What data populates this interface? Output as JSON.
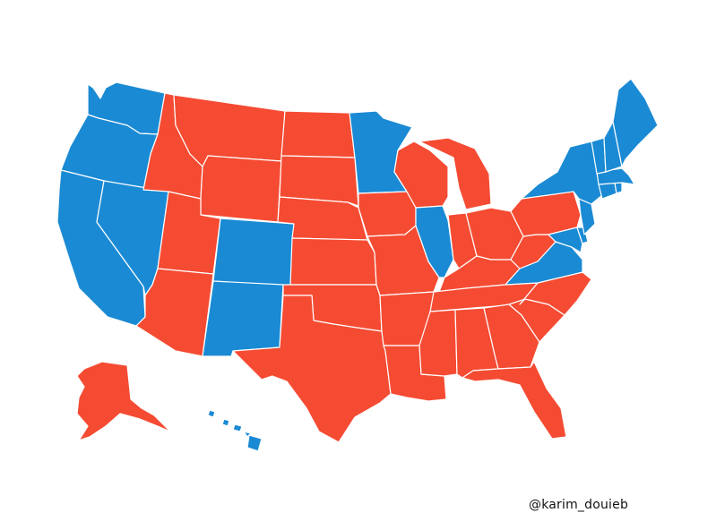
{
  "credit": "@karim_douieb",
  "colors": {
    "dem": "#1a8ad4",
    "rep": "#f54b33",
    "border": "#ffffff",
    "background": "#ffffff"
  },
  "states": {
    "WA": "dem",
    "OR": "dem",
    "CA": "dem",
    "NV": "dem",
    "ID": "rep",
    "MT": "rep",
    "WY": "rep",
    "UT": "rep",
    "AZ": "rep",
    "CO": "dem",
    "NM": "dem",
    "ND": "rep",
    "SD": "rep",
    "NE": "rep",
    "KS": "rep",
    "OK": "rep",
    "TX": "rep",
    "MN": "dem",
    "IA": "rep",
    "MO": "rep",
    "AR": "rep",
    "LA": "rep",
    "WI": "rep",
    "IL": "dem",
    "MI": "rep",
    "IN": "rep",
    "OH": "rep",
    "KY": "rep",
    "TN": "rep",
    "MS": "rep",
    "AL": "rep",
    "GA": "rep",
    "FL": "rep",
    "SC": "rep",
    "NC": "rep",
    "VA": "dem",
    "WV": "rep",
    "MD": "dem",
    "DE": "dem",
    "NJ": "dem",
    "PA": "rep",
    "NY": "dem",
    "CT": "dem",
    "RI": "dem",
    "MA": "dem",
    "VT": "dem",
    "NH": "dem",
    "ME": "dem",
    "AK": "rep",
    "HI": "dem"
  }
}
